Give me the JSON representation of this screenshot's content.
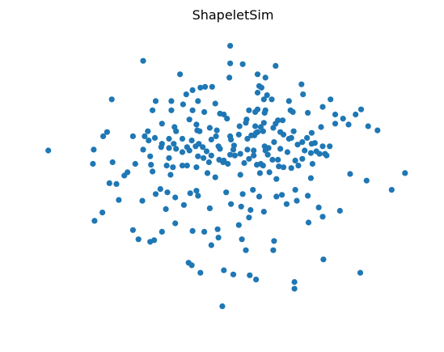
{
  "chart_data": {
    "type": "scatter",
    "title": "ShapeletSim",
    "xlabel": "",
    "ylabel": "",
    "axes_visible": false,
    "grid": false,
    "marker_color": "#1f77b4",
    "xlim": [
      -2.55,
      2.35
    ],
    "ylim": [
      -1.75,
      1.65
    ],
    "series": [
      {
        "points": [
          [
            -0.13,
            1.49
          ],
          [
            -1.24,
            1.31
          ],
          [
            -0.13,
            1.28
          ],
          [
            0.03,
            1.27
          ],
          [
            0.45,
            1.25
          ],
          [
            -0.77,
            1.15
          ],
          [
            0.22,
            1.15
          ],
          [
            -0.14,
            1.11
          ],
          [
            0.32,
            1.11
          ],
          [
            0.78,
            1.03
          ],
          [
            -0.45,
            1.0
          ],
          [
            0.24,
            1.01
          ],
          [
            0.27,
            0.99
          ],
          [
            -0.61,
            0.96
          ],
          [
            -0.51,
            0.99
          ],
          [
            -0.36,
            1.0
          ],
          [
            -0.69,
            0.91
          ],
          [
            0.22,
            0.93
          ],
          [
            0.8,
            0.91
          ],
          [
            0.34,
            0.9
          ],
          [
            -1.64,
            0.85
          ],
          [
            1.15,
            0.85
          ],
          [
            -1.08,
            0.83
          ],
          [
            -0.88,
            0.83
          ],
          [
            -0.54,
            0.83
          ],
          [
            0.4,
            0.85
          ],
          [
            0.3,
            0.85
          ],
          [
            0.62,
            0.83
          ],
          [
            -0.32,
            0.8
          ],
          [
            -0.73,
            0.79
          ],
          [
            0.11,
            0.72
          ],
          [
            0.19,
            0.7
          ],
          [
            -1.12,
            0.72
          ],
          [
            -0.88,
            0.72
          ],
          [
            0.22,
            0.73
          ],
          [
            0.32,
            0.72
          ],
          [
            0.31,
            0.69
          ],
          [
            0.64,
            0.72
          ],
          [
            0.67,
            0.7
          ],
          [
            0.86,
            0.69
          ],
          [
            1.05,
            0.76
          ],
          [
            -0.61,
            0.72
          ],
          [
            -0.46,
            0.7
          ],
          [
            -0.26,
            0.68
          ],
          [
            1.54,
            0.73
          ],
          [
            1.21,
            0.67
          ],
          [
            1.31,
            0.62
          ],
          [
            1.47,
            0.67
          ],
          [
            -0.21,
            0.67
          ],
          [
            -0.17,
            0.62
          ],
          [
            0.08,
            0.61
          ],
          [
            0.48,
            0.6
          ],
          [
            0.45,
            0.56
          ],
          [
            0.54,
            0.6
          ],
          [
            -0.65,
            0.61
          ],
          [
            -0.56,
            0.55
          ],
          [
            -1.0,
            0.56
          ],
          [
            0.3,
            0.57
          ],
          [
            0.19,
            0.53
          ],
          [
            0.07,
            0.57
          ],
          [
            -0.01,
            0.53
          ],
          [
            0.26,
            0.52
          ],
          [
            0.42,
            0.51
          ],
          [
            0.29,
            0.47
          ],
          [
            -0.39,
            0.51
          ],
          [
            -0.3,
            0.48
          ],
          [
            -0.84,
            0.52
          ],
          [
            -0.55,
            0.48
          ],
          [
            1.21,
            0.56
          ],
          [
            1.38,
            0.55
          ],
          [
            1.63,
            0.53
          ],
          [
            1.03,
            0.52
          ],
          [
            1.75,
            0.48
          ],
          [
            -1.18,
            0.47
          ],
          [
            -0.52,
            0.47
          ],
          [
            0.2,
            0.45
          ],
          [
            -1.7,
            0.46
          ],
          [
            -1.75,
            0.41
          ],
          [
            -1.37,
            0.41
          ],
          [
            -0.82,
            0.47
          ],
          [
            -0.31,
            0.41
          ],
          [
            -0.13,
            0.41
          ],
          [
            0.51,
            0.46
          ],
          [
            0.55,
            0.43
          ],
          [
            0.68,
            0.47
          ],
          [
            0.22,
            0.46
          ],
          [
            -0.02,
            0.43
          ],
          [
            -1.22,
            0.41
          ],
          [
            -1.09,
            0.39
          ],
          [
            0.91,
            0.45
          ],
          [
            0.65,
            0.39
          ],
          [
            0.85,
            0.39
          ],
          [
            0.62,
            0.38
          ],
          [
            -0.91,
            0.38
          ],
          [
            -0.74,
            0.38
          ],
          [
            -0.62,
            0.36
          ],
          [
            -0.37,
            0.37
          ],
          [
            -0.12,
            0.37
          ],
          [
            -1.17,
            0.36
          ],
          [
            -1.0,
            0.32
          ],
          [
            0.09,
            0.38
          ],
          [
            0.18,
            0.42
          ],
          [
            0.14,
            0.42
          ],
          [
            0.43,
            0.34
          ],
          [
            0.79,
            0.34
          ],
          [
            0.91,
            0.32
          ],
          [
            0.95,
            0.33
          ],
          [
            -0.85,
            0.32
          ],
          [
            -0.91,
            0.27
          ],
          [
            -0.68,
            0.28
          ],
          [
            -0.57,
            0.29
          ],
          [
            -0.53,
            0.32
          ],
          [
            -0.28,
            0.29
          ],
          [
            -0.48,
            0.28
          ],
          [
            -0.26,
            0.26
          ],
          [
            -0.08,
            0.3
          ],
          [
            -0.09,
            0.25
          ],
          [
            0.31,
            0.29
          ],
          [
            0.36,
            0.27
          ],
          [
            0.73,
            0.31
          ],
          [
            1.05,
            0.29
          ],
          [
            1.14,
            0.29
          ],
          [
            -2.45,
            0.24
          ],
          [
            -1.87,
            0.25
          ],
          [
            -1.24,
            0.25
          ],
          [
            -1.01,
            0.28
          ],
          [
            -0.82,
            0.26
          ],
          [
            -0.65,
            0.24
          ],
          [
            -0.43,
            0.23
          ],
          [
            -0.37,
            0.18
          ],
          [
            0.0,
            0.2
          ],
          [
            0.09,
            0.25
          ],
          [
            0.17,
            0.24
          ],
          [
            0.32,
            0.24
          ],
          [
            0.51,
            0.26
          ],
          [
            0.6,
            0.22
          ],
          [
            0.82,
            0.24
          ],
          [
            0.9,
            0.21
          ],
          [
            0.97,
            0.23
          ],
          [
            1.01,
            0.2
          ],
          [
            1.08,
            0.2
          ],
          [
            1.1,
            0.18
          ],
          [
            -1.15,
            0.17
          ],
          [
            -0.74,
            0.22
          ],
          [
            -0.91,
            0.15
          ],
          [
            -0.54,
            0.17
          ],
          [
            -0.47,
            0.15
          ],
          [
            -0.27,
            0.13
          ],
          [
            -0.21,
            0.12
          ],
          [
            -0.13,
            0.19
          ],
          [
            -0.07,
            0.18
          ],
          [
            0.11,
            0.14
          ],
          [
            0.17,
            0.18
          ],
          [
            0.26,
            0.08
          ],
          [
            0.35,
            0.19
          ],
          [
            0.41,
            0.13
          ],
          [
            0.48,
            0.13
          ],
          [
            0.7,
            0.12
          ],
          [
            0.79,
            0.14
          ],
          [
            -1.88,
            0.08
          ],
          [
            -1.63,
            0.1
          ],
          [
            -1.34,
            0.08
          ],
          [
            -1.14,
            0.07
          ],
          [
            -0.94,
            0.06
          ],
          [
            -0.86,
            0.04
          ],
          [
            -0.74,
            0.06
          ],
          [
            -0.68,
            0.06
          ],
          [
            -0.56,
            0.04
          ],
          [
            -0.4,
            0.1
          ],
          [
            -0.22,
            0.1
          ],
          [
            -0.16,
            0.08
          ],
          [
            0.05,
            0.09
          ],
          [
            0.21,
            0.07
          ],
          [
            0.29,
            0.06
          ],
          [
            0.49,
            0.05
          ],
          [
            0.55,
            0.04
          ],
          [
            0.74,
            0.06
          ],
          [
            0.92,
            0.08
          ],
          [
            0.65,
            0.03
          ],
          [
            -1.44,
            -0.02
          ],
          [
            -1.12,
            -0.01
          ],
          [
            -0.89,
            -0.05
          ],
          [
            -1.48,
            -0.06
          ],
          [
            -0.42,
            -0.03
          ],
          [
            -0.32,
            -0.08
          ],
          [
            0.0,
            -0.05
          ],
          [
            0.46,
            -0.1
          ],
          [
            0.37,
            -0.02
          ],
          [
            0.25,
            -0.03
          ],
          [
            0.9,
            -0.09
          ],
          [
            1.4,
            -0.04
          ],
          [
            2.1,
            -0.03
          ],
          [
            1.93,
            -0.23
          ],
          [
            -1.67,
            -0.15
          ],
          [
            -1.58,
            -0.16
          ],
          [
            -0.56,
            -0.24
          ],
          [
            -0.18,
            -0.26
          ],
          [
            0.03,
            -0.28
          ],
          [
            0.16,
            -0.23
          ],
          [
            0.24,
            -0.31
          ],
          [
            0.46,
            -0.31
          ],
          [
            0.86,
            -0.3
          ],
          [
            0.7,
            -0.23
          ],
          [
            0.53,
            -0.29
          ],
          [
            -1.02,
            -0.22
          ],
          [
            -1.08,
            -0.28
          ],
          [
            -0.93,
            -0.26
          ],
          [
            -0.64,
            -0.27
          ],
          [
            -0.54,
            -0.3
          ],
          [
            -1.25,
            -0.36
          ],
          [
            -0.72,
            -0.41
          ],
          [
            -0.12,
            -0.4
          ],
          [
            0.01,
            -0.43
          ],
          [
            0.13,
            -0.47
          ],
          [
            0.3,
            -0.49
          ],
          [
            0.59,
            -0.4
          ],
          [
            0.72,
            -0.36
          ],
          [
            1.0,
            -0.44
          ],
          [
            1.05,
            -0.55
          ],
          [
            1.27,
            -0.48
          ],
          [
            0.87,
            -0.62
          ],
          [
            -0.02,
            -0.65
          ],
          [
            -0.29,
            -0.7
          ],
          [
            -0.46,
            -0.73
          ],
          [
            -1.0,
            -0.73
          ],
          [
            -1.1,
            -0.83
          ],
          [
            -0.28,
            -0.8
          ],
          [
            0.02,
            -0.82
          ],
          [
            0.43,
            -0.84
          ],
          [
            -1.15,
            -0.85
          ],
          [
            -0.37,
            -0.89
          ],
          [
            0.07,
            -0.95
          ],
          [
            0.42,
            -0.95
          ],
          [
            -0.62,
            -1.13
          ],
          [
            -0.66,
            -1.1
          ],
          [
            -0.51,
            -1.22
          ],
          [
            -0.21,
            -1.19
          ],
          [
            0.12,
            -1.25
          ],
          [
            -0.09,
            -1.24
          ],
          [
            0.2,
            -1.3
          ],
          [
            0.69,
            -1.33
          ],
          [
            0.69,
            -1.41
          ],
          [
            1.06,
            -1.06
          ],
          [
            1.53,
            -1.22
          ],
          [
            -0.23,
            -1.62
          ],
          [
            -1.3,
            -0.82
          ],
          [
            -1.86,
            -0.6
          ],
          [
            -1.37,
            -0.71
          ],
          [
            -1.76,
            -0.5
          ],
          [
            -0.83,
            -0.32
          ],
          [
            -0.61,
            -0.72
          ],
          [
            0.11,
            -0.56
          ],
          [
            -0.83,
            -0.63
          ],
          [
            -0.39,
            -0.45
          ],
          [
            -1.55,
            -0.35
          ],
          [
            -0.95,
            -0.46
          ],
          [
            1.61,
            -0.12
          ]
        ]
      }
    ]
  }
}
